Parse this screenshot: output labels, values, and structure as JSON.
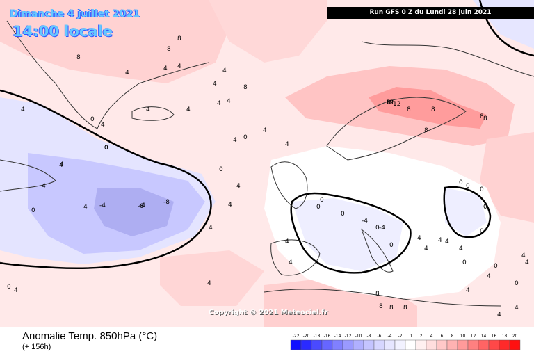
{
  "header": {
    "date": "Dimanche 4 juillet 2021",
    "time": "14:00 locale",
    "run": "Run GFS 0 Z du Lundi 28 juin 2021"
  },
  "copyright": "Copyright © 2021 Meteociel.fr",
  "footer": {
    "title": "Anomalie Temp. 850hPa (°C)",
    "subtitle": "(+ 156h)"
  },
  "legend": {
    "ticks": [
      "-22",
      "-20",
      "-18",
      "-16",
      "-14",
      "-12",
      "-10",
      "-8",
      "-6",
      "-4",
      "-2",
      "0",
      "2",
      "4",
      "6",
      "8",
      "10",
      "12",
      "14",
      "16",
      "18",
      "20"
    ],
    "colors": [
      "#1010ff",
      "#2a2aff",
      "#4a4aff",
      "#6666ff",
      "#8080ff",
      "#9a9aff",
      "#b0b0ff",
      "#c4c4ff",
      "#d6d6ff",
      "#e6e6ff",
      "#f2f2ff",
      "#ffffff",
      "#fff0f0",
      "#ffdede",
      "#ffc8c8",
      "#ffb2b2",
      "#ff9a9a",
      "#ff8080",
      "#ff6464",
      "#ff4848",
      "#ff2a2a",
      "#ff1010"
    ]
  },
  "contour_labels": [
    "8",
    "8",
    "8",
    "4",
    "4",
    "4",
    "4",
    "4",
    "4",
    "0",
    "0",
    "8",
    "8",
    "8",
    "8",
    "4",
    "4",
    "4",
    "4",
    "4",
    "4",
    "8",
    "8",
    "4",
    "0",
    "0",
    "4",
    "4",
    "4",
    "4",
    "4",
    "4",
    "8",
    "8",
    "12",
    "12",
    "8",
    "8",
    "4",
    "4",
    "0",
    "0",
    "4",
    "4",
    "0",
    "4",
    "4",
    "-4",
    "-4",
    "-8",
    "-8",
    "0",
    "0",
    "0",
    "0",
    "-4",
    "-4",
    "4",
    "4",
    "4",
    "4",
    "4",
    "4",
    "4",
    "0",
    "0",
    "0",
    "0",
    "0",
    "0",
    "0",
    "8",
    "8",
    "4",
    "4",
    "4",
    "4",
    "0",
    "0"
  ],
  "colors": {
    "warm_light": "#ffe9e9",
    "warm_mid": "#ffd0d0",
    "warm_strong": "#ff9c9c",
    "cold_light": "#e6e6ff",
    "cold_mid": "#c8c8ff",
    "cold_strong": "#a8a8f0",
    "text_label": "#66c8ff"
  }
}
